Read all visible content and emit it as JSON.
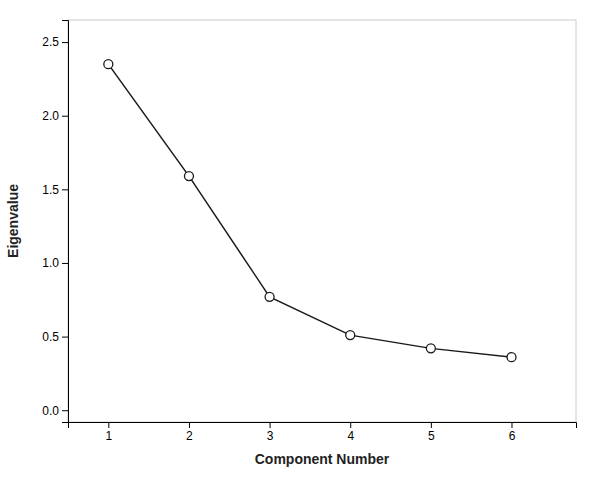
{
  "chart_data": {
    "type": "line",
    "xlabel": "Component Number",
    "ylabel": "Eigenvalue",
    "x": [
      1,
      2,
      3,
      4,
      5,
      6
    ],
    "values": [
      2.35,
      1.59,
      0.77,
      0.51,
      0.42,
      0.36
    ],
    "color": "#1a1a1a",
    "marker": "circle",
    "grid": false,
    "xlim": [
      0.5,
      6.8
    ],
    "ylim": [
      -0.08,
      2.65
    ],
    "xticks": [
      1,
      2,
      3,
      4,
      5,
      6
    ],
    "yticks": [
      {
        "value": 0.0,
        "label": "0.0"
      },
      0.5,
      {
        "value": 1.0,
        "label": "1.0"
      },
      1.5,
      {
        "value": 2.0,
        "label": "2.0"
      },
      2.5
    ]
  }
}
